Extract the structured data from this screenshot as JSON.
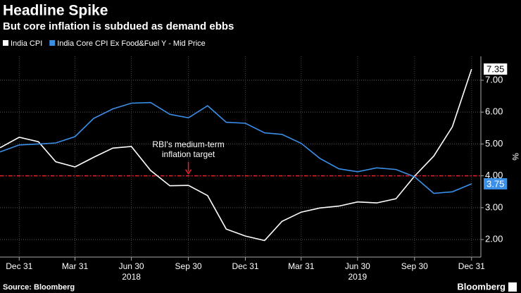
{
  "chart_data": {
    "type": "line",
    "title": "Headline Spike",
    "subtitle": "But core inflation is subdued as demand ebbs",
    "x": [
      "2017-11-30",
      "2017-12-31",
      "2018-01-31",
      "2018-02-28",
      "2018-03-31",
      "2018-04-30",
      "2018-05-31",
      "2018-06-30",
      "2018-07-31",
      "2018-08-31",
      "2018-09-30",
      "2018-10-31",
      "2018-11-30",
      "2018-12-31",
      "2019-01-31",
      "2019-02-28",
      "2019-03-31",
      "2019-04-30",
      "2019-05-31",
      "2019-06-30",
      "2019-07-31",
      "2019-08-31",
      "2019-09-30",
      "2019-10-31",
      "2019-11-30",
      "2019-12-31"
    ],
    "series": [
      {
        "name": "India CPI",
        "color": "#ffffff",
        "values": [
          4.88,
          5.21,
          5.07,
          4.44,
          4.28,
          4.58,
          4.87,
          4.92,
          4.17,
          3.69,
          3.7,
          3.38,
          2.33,
          2.11,
          1.97,
          2.57,
          2.86,
          2.99,
          3.05,
          3.18,
          3.15,
          3.28,
          3.99,
          4.62,
          5.54,
          7.35
        ]
      },
      {
        "name": "India Core CPI Ex Food&Fuel Y - Mid Price",
        "color": "#3a8fe8",
        "values": [
          4.75,
          4.97,
          5.0,
          5.03,
          5.23,
          5.8,
          6.1,
          6.28,
          6.3,
          5.93,
          5.82,
          6.2,
          5.68,
          5.65,
          5.35,
          5.3,
          5.02,
          4.55,
          4.22,
          4.13,
          4.25,
          4.2,
          3.97,
          3.45,
          3.5,
          3.75
        ]
      }
    ],
    "end_labels": true,
    "xlim": [
      "2017-11-30",
      "2020-01-15"
    ],
    "xticks": [
      {
        "value": "2017-12-31",
        "label": "Dec 31"
      },
      {
        "value": "2018-03-31",
        "label": "Mar 31"
      },
      {
        "value": "2018-06-30",
        "label": "Jun 30"
      },
      {
        "value": "2018-09-30",
        "label": "Sep 30"
      },
      {
        "value": "2018-12-31",
        "label": "Dec 31"
      },
      {
        "value": "2019-03-31",
        "label": "Mar 31"
      },
      {
        "value": "2019-06-30",
        "label": "Jun 30"
      },
      {
        "value": "2019-09-30",
        "label": "Sep 30"
      },
      {
        "value": "2019-12-31",
        "label": "Dec 31"
      }
    ],
    "x_group_labels": [
      {
        "value": "2018-06-30",
        "label": "2018"
      },
      {
        "value": "2019-06-30",
        "label": "2019"
      }
    ],
    "ylim": [
      1.45,
      7.75
    ],
    "yticks": [
      {
        "value": 2,
        "label": "2.00"
      },
      {
        "value": 3,
        "label": "3.00"
      },
      {
        "value": 4,
        "label": "4.00"
      },
      {
        "value": 5,
        "label": "5.00"
      },
      {
        "value": 6,
        "label": "6.00"
      },
      {
        "value": 7,
        "label": "7.00"
      }
    ],
    "y_label": "%",
    "grid": true,
    "reference_line": {
      "value": 4,
      "color": "#e8232a"
    },
    "annotation": {
      "lines": [
        "RBI's medium-term",
        "inflation target"
      ],
      "x": "2018-09-30",
      "y": 4
    },
    "source": "Source: Bloomberg",
    "brand": "Bloomberg"
  }
}
